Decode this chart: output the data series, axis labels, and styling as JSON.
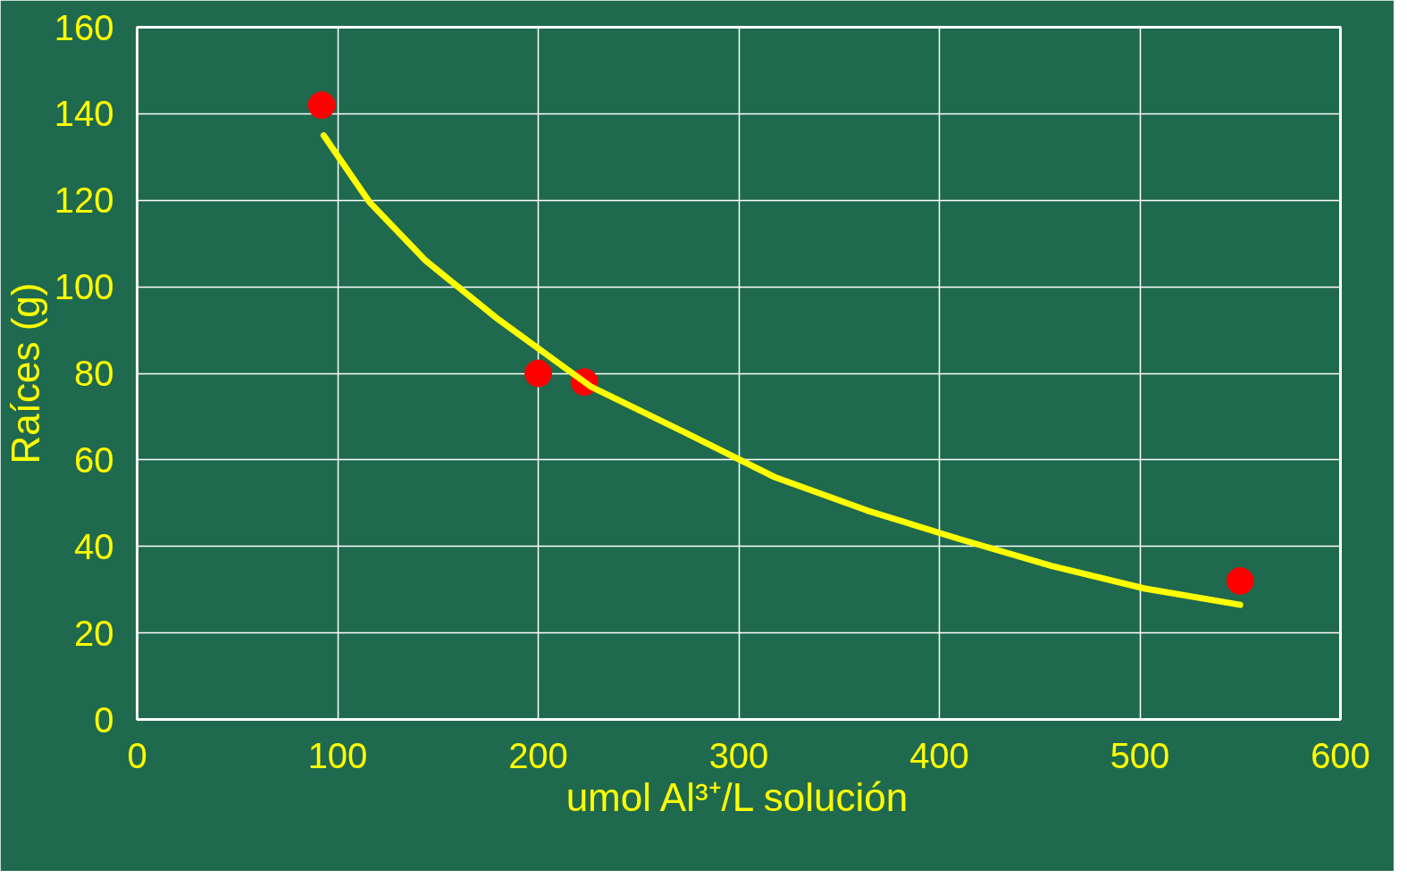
{
  "chart_data": {
    "type": "scatter",
    "xlabel": "umol Al³⁺/L solución",
    "ylabel": "Raíces (g)",
    "xlim": [
      0,
      600
    ],
    "ylim": [
      0,
      160
    ],
    "xticks": [
      0,
      100,
      200,
      300,
      400,
      500,
      600
    ],
    "yticks": [
      0,
      20,
      40,
      60,
      80,
      100,
      120,
      140,
      160
    ],
    "grid": true,
    "series": [
      {
        "color": "#ff0000",
        "marker": "circle",
        "x": [
          92,
          200,
          223,
          550
        ],
        "values": [
          142,
          80,
          78,
          32
        ]
      },
      {
        "type": "line",
        "color": "#ffff00",
        "line_style": "solid",
        "x": [
          93,
          116,
          144,
          180,
          226,
          272,
          318,
          364,
          410,
          456,
          502,
          550
        ],
        "values": [
          135,
          119.5,
          106,
          92.5,
          77,
          66.6,
          56,
          48.3,
          41.7,
          35.5,
          30.3,
          26.5
        ]
      }
    ]
  }
}
